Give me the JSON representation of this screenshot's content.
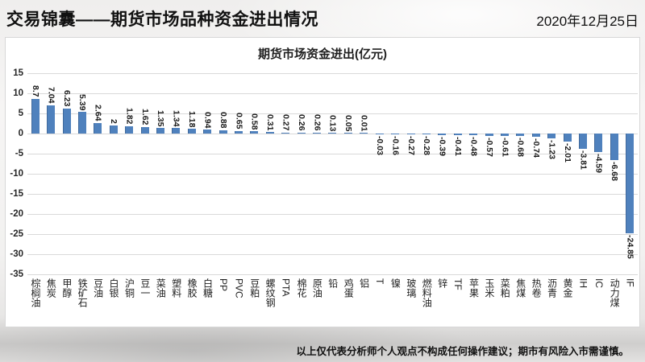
{
  "header": {
    "title": "交易锦囊——期货市场品种资金进出情况",
    "date": "2020年12月25日"
  },
  "chart_data": {
    "type": "bar",
    "title": "期货市场资金进出(亿元)",
    "categories": [
      "棕榈油",
      "焦炭",
      "甲醇",
      "铁矿石",
      "豆油",
      "白银",
      "沪铜",
      "豆一",
      "菜油",
      "塑料",
      "橡胶",
      "白糖",
      "PP",
      "PVC",
      "豆粕",
      "螺纹钢",
      "PTA",
      "棉花",
      "原油",
      "铅",
      "鸡蛋",
      "铝",
      "T",
      "镍",
      "玻璃",
      "燃料油",
      "锌",
      "TF",
      "苹果",
      "玉米",
      "菜粕",
      "焦煤",
      "热卷",
      "沥青",
      "黄金",
      "IH",
      "IC",
      "动力煤",
      "IF"
    ],
    "values": [
      8.7,
      7.04,
      6.23,
      5.39,
      2.64,
      2,
      1.82,
      1.62,
      1.35,
      1.34,
      1.18,
      0.94,
      0.88,
      0.65,
      0.58,
      0.31,
      0.27,
      0.26,
      0.26,
      0.13,
      0.05,
      0.01,
      -0.03,
      -0.16,
      -0.27,
      -0.28,
      -0.39,
      -0.41,
      -0.48,
      -0.57,
      -0.61,
      -0.68,
      -0.74,
      -1.23,
      -2.01,
      -3.81,
      -4.59,
      -6.68,
      -24.85
    ],
    "xlabel": "",
    "ylabel": "",
    "ylim": [
      -35,
      15
    ],
    "ytick_step": 5,
    "grid": true,
    "legend": "none",
    "bar_color": "#4f81bd",
    "grid_color": "#d9d9d9",
    "value_labels_rotated": true
  },
  "footer": {
    "disclaimer": "以上仅代表分析师个人观点不构成任何操作建议；期市有风险入市需谨慎。"
  }
}
